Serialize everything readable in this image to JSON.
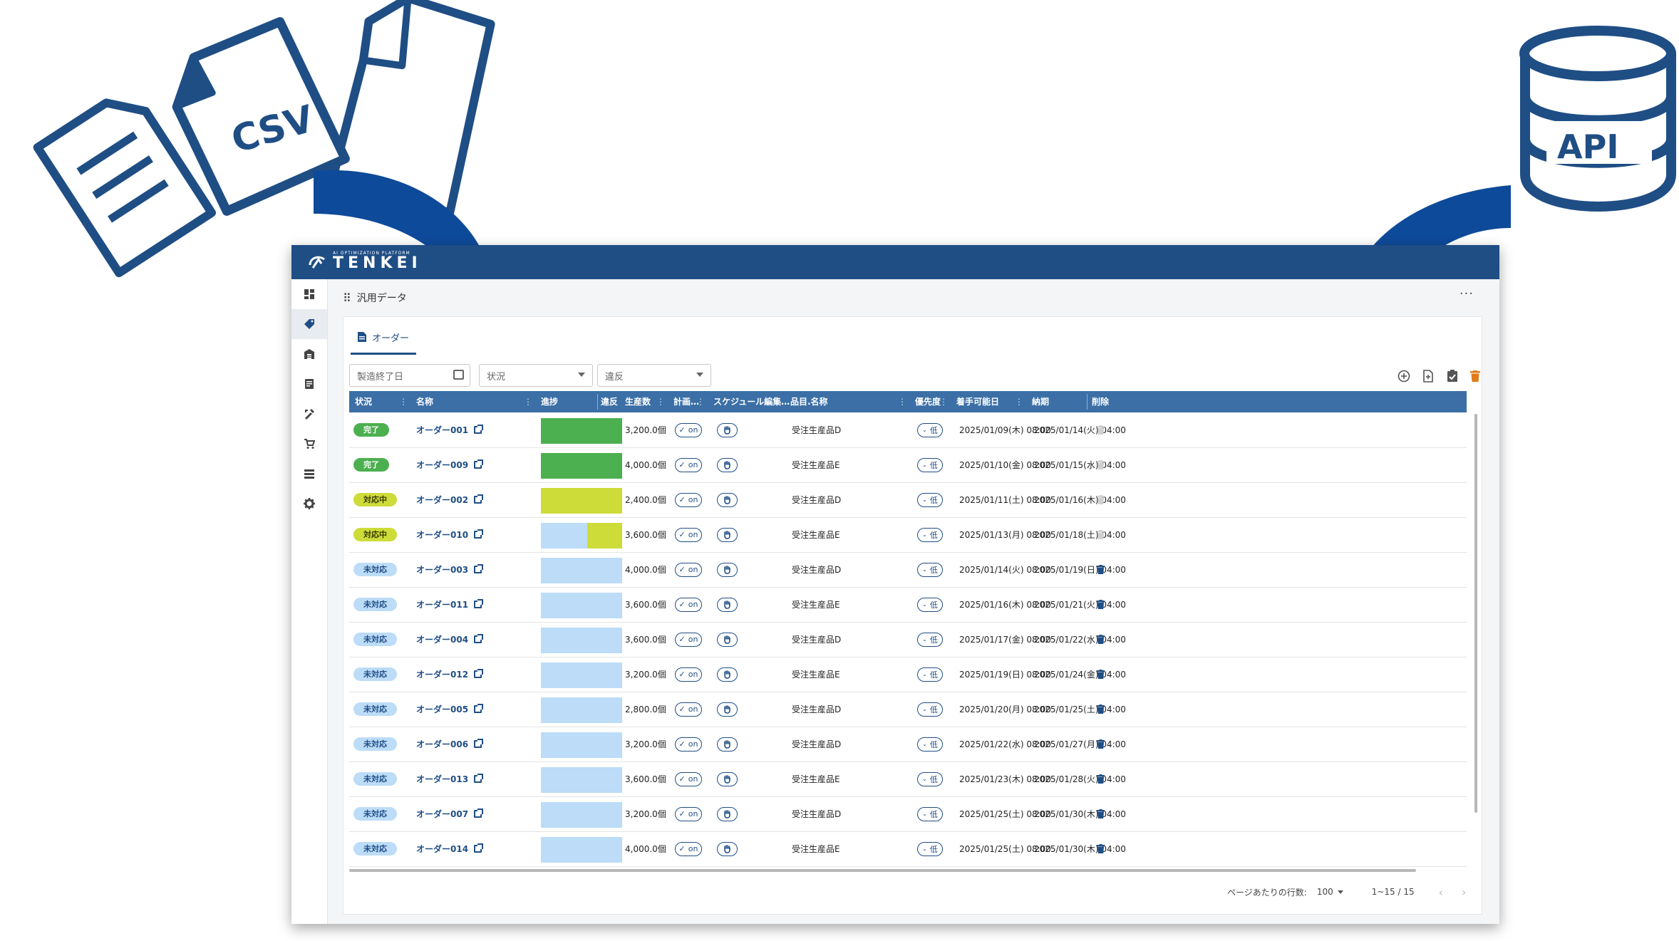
{
  "decorations": {
    "csv_label": "CSV",
    "api_label": "API"
  },
  "colors": {
    "accent": "#1f4e85",
    "header": "#3b6fa6",
    "done": "#4caf50",
    "in_progress": "#cddc39",
    "pending": "#bcdcf8",
    "delete_active": "#1f4e85",
    "delete_disabled": "#cfcfcf",
    "delete_all": "#e37a1a"
  },
  "app": {
    "logo_text": "TENKEI",
    "logo_subtext": "AI OPTIMIZATION PLATFORM",
    "breadcrumb": "汎用データ",
    "tab_label": "オーダー"
  },
  "sidebar": {
    "items": [
      "dashboard-icon",
      "tag-icon",
      "factory-icon",
      "report-icon",
      "edit-tools-icon",
      "cart-icon",
      "list-icon",
      "gear-icon"
    ],
    "active_index": 1
  },
  "filters": {
    "end_date": {
      "placeholder": "製造終了日"
    },
    "status": {
      "placeholder": "状況"
    },
    "violation": {
      "placeholder": "違反"
    }
  },
  "toolbar": [
    "add-circle-icon",
    "import-file-icon",
    "check-clipboard-icon",
    "delete-all-icon"
  ],
  "table": {
    "columns": {
      "status": "状況",
      "name": "名称",
      "progress": "進捗",
      "violation": "違反",
      "quantity": "生産数",
      "plan": "計画…",
      "schedule": "スケジュール編集…",
      "item": "品目.名称",
      "priority": "優先度",
      "start": "着手可能日",
      "due": "納期",
      "delete": "削除"
    },
    "rows": [
      {
        "status": "完了",
        "status_type": "done",
        "name": "オーダー001",
        "progress": 1.0,
        "quantity": "3,200.0個",
        "plan": "on",
        "item": "受注生産品D",
        "priority": "低",
        "start": "2025/01/09(木) 08:00",
        "due": "2025/01/14(火) 04:00",
        "deletable": false
      },
      {
        "status": "完了",
        "status_type": "done",
        "name": "オーダー009",
        "progress": 1.0,
        "quantity": "4,000.0個",
        "plan": "on",
        "item": "受注生産品E",
        "priority": "低",
        "start": "2025/01/10(金) 08:00",
        "due": "2025/01/15(水) 04:00",
        "deletable": false
      },
      {
        "status": "対応中",
        "status_type": "in_progress",
        "name": "オーダー002",
        "progress": 1.0,
        "quantity": "2,400.0個",
        "plan": "on",
        "item": "受注生産品D",
        "priority": "低",
        "start": "2025/01/11(土) 08:00",
        "due": "2025/01/16(木) 04:00",
        "deletable": false
      },
      {
        "status": "対応中",
        "status_type": "in_progress",
        "name": "オーダー010",
        "progress": 0.43,
        "quantity": "3,600.0個",
        "plan": "on",
        "item": "受注生産品E",
        "priority": "低",
        "start": "2025/01/13(月) 08:00",
        "due": "2025/01/18(土) 04:00",
        "deletable": false
      },
      {
        "status": "未対応",
        "status_type": "pending",
        "name": "オーダー003",
        "progress": 0,
        "quantity": "4,000.0個",
        "plan": "on",
        "item": "受注生産品D",
        "priority": "低",
        "start": "2025/01/14(火) 08:00",
        "due": "2025/01/19(日) 04:00",
        "deletable": true
      },
      {
        "status": "未対応",
        "status_type": "pending",
        "name": "オーダー011",
        "progress": 0,
        "quantity": "3,600.0個",
        "plan": "on",
        "item": "受注生産品E",
        "priority": "低",
        "start": "2025/01/16(木) 08:00",
        "due": "2025/01/21(火) 04:00",
        "deletable": true
      },
      {
        "status": "未対応",
        "status_type": "pending",
        "name": "オーダー004",
        "progress": 0,
        "quantity": "3,600.0個",
        "plan": "on",
        "item": "受注生産品D",
        "priority": "低",
        "start": "2025/01/17(金) 08:00",
        "due": "2025/01/22(水) 04:00",
        "deletable": true
      },
      {
        "status": "未対応",
        "status_type": "pending",
        "name": "オーダー012",
        "progress": 0,
        "quantity": "3,200.0個",
        "plan": "on",
        "item": "受注生産品E",
        "priority": "低",
        "start": "2025/01/19(日) 08:00",
        "due": "2025/01/24(金) 04:00",
        "deletable": true
      },
      {
        "status": "未対応",
        "status_type": "pending",
        "name": "オーダー005",
        "progress": 0,
        "quantity": "2,800.0個",
        "plan": "on",
        "item": "受注生産品D",
        "priority": "低",
        "start": "2025/01/20(月) 08:00",
        "due": "2025/01/25(土) 04:00",
        "deletable": true
      },
      {
        "status": "未対応",
        "status_type": "pending",
        "name": "オーダー006",
        "progress": 0,
        "quantity": "3,200.0個",
        "plan": "on",
        "item": "受注生産品D",
        "priority": "低",
        "start": "2025/01/22(水) 08:00",
        "due": "2025/01/27(月) 04:00",
        "deletable": true
      },
      {
        "status": "未対応",
        "status_type": "pending",
        "name": "オーダー013",
        "progress": 0,
        "quantity": "3,600.0個",
        "plan": "on",
        "item": "受注生産品E",
        "priority": "低",
        "start": "2025/01/23(木) 08:00",
        "due": "2025/01/28(火) 04:00",
        "deletable": true
      },
      {
        "status": "未対応",
        "status_type": "pending",
        "name": "オーダー007",
        "progress": 0,
        "quantity": "3,200.0個",
        "plan": "on",
        "item": "受注生産品D",
        "priority": "低",
        "start": "2025/01/25(土) 08:00",
        "due": "2025/01/30(木) 04:00",
        "deletable": true
      },
      {
        "status": "未対応",
        "status_type": "pending",
        "name": "オーダー014",
        "progress": 0,
        "quantity": "4,000.0個",
        "plan": "on",
        "item": "受注生産品E",
        "priority": "低",
        "start": "2025/01/25(土) 08:00",
        "due": "2025/01/30(木) 04:00",
        "deletable": true
      }
    ]
  },
  "footer": {
    "rows_per_page_label": "ページあたりの行数:",
    "rows_per_page": "100",
    "range": "1~15 / 15"
  }
}
